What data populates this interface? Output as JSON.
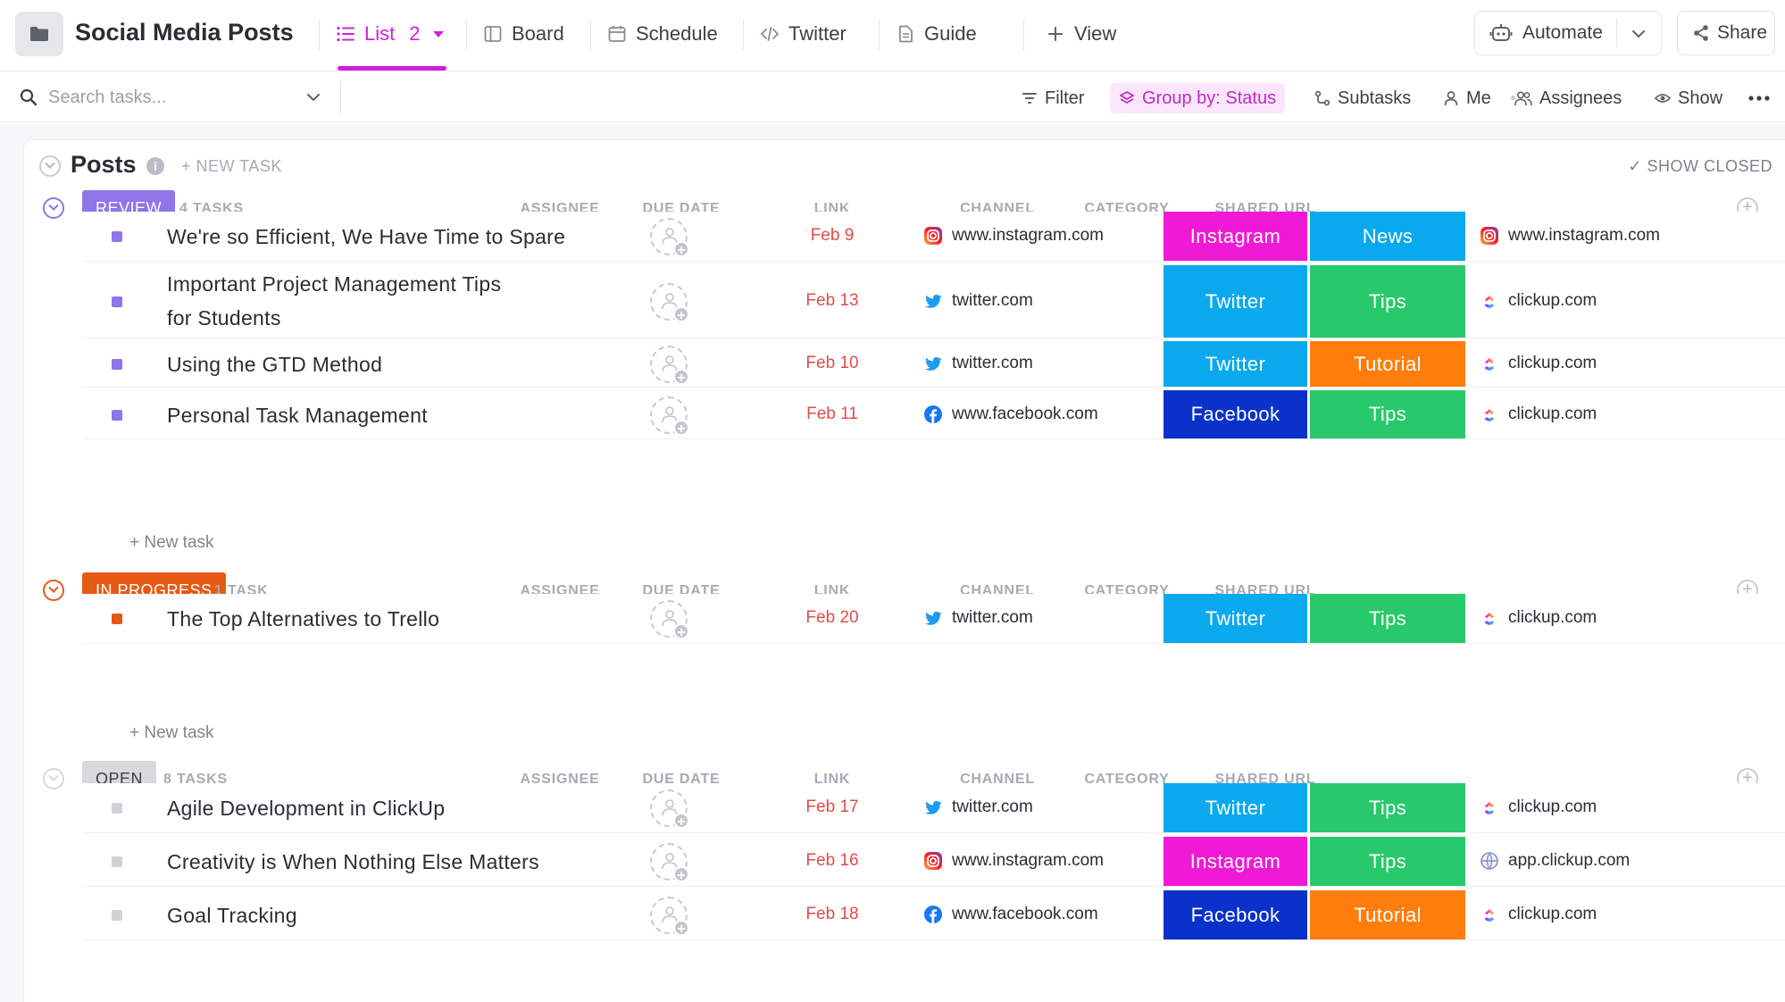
{
  "header": {
    "title": "Social Media Posts",
    "tabs": [
      {
        "label": "List",
        "count": "2",
        "icon": "list-icon",
        "active": true
      },
      {
        "label": "Board",
        "icon": "board-icon"
      },
      {
        "label": "Schedule",
        "icon": "calendar-icon"
      },
      {
        "label": "Twitter",
        "icon": "embed-icon"
      },
      {
        "label": "Guide",
        "icon": "doc-icon"
      }
    ],
    "add_view": "View",
    "automate": "Automate",
    "share": "Share"
  },
  "toolbar": {
    "search_placeholder": "Search tasks...",
    "filter": "Filter",
    "group_by": "Group by: Status",
    "subtasks": "Subtasks",
    "me": "Me",
    "assignees": "Assignees",
    "show": "Show"
  },
  "list": {
    "title": "Posts",
    "new_task": "+ NEW TASK",
    "show_closed": "SHOW CLOSED"
  },
  "columns": {
    "assignee": "ASSIGNEE",
    "due_date": "DUE DATE",
    "link": "LINK",
    "channel": "CHANNEL",
    "category": "CATEGORY",
    "shared_url": "SHARED URL"
  },
  "new_task_row": "+ New task",
  "colors": {
    "accent": "#d020d8",
    "review": "#8f74ea",
    "in_progress": "#e65a14",
    "open": "#d7d9dd",
    "due": "#e34b48",
    "Instagram": "#f01ad6",
    "Twitter": "#0aa9ee",
    "Facebook": "#0a31c9",
    "News": "#0aa9ee",
    "Tips": "#27c96b",
    "Tutorial": "#ff7d0c"
  },
  "groups": [
    {
      "status": "REVIEW",
      "count": "4 TASKS",
      "pill_bg": "#8f74ea",
      "pill_fg": "#ffffff",
      "square": "#8f74ea",
      "tasks": [
        {
          "name": "We're so Efficient, We Have Time to Spare",
          "due": "Feb 9",
          "link": "www.instagram.com",
          "link_icon": "instagram",
          "channel": "Instagram",
          "category": "News",
          "shared": "www.instagram.com",
          "shared_icon": "instagram"
        },
        {
          "name": "Important Project Management Tips for Students",
          "due": "Feb 13",
          "link": "twitter.com",
          "link_icon": "twitter",
          "channel": "Twitter",
          "category": "Tips",
          "shared": "clickup.com",
          "shared_icon": "clickup"
        },
        {
          "name": "Using the GTD Method",
          "due": "Feb 10",
          "link": "twitter.com",
          "link_icon": "twitter",
          "channel": "Twitter",
          "category": "Tutorial",
          "shared": "clickup.com",
          "shared_icon": "clickup"
        },
        {
          "name": "Personal Task Management",
          "due": "Feb 11",
          "link": "www.facebook.com",
          "link_icon": "facebook",
          "channel": "Facebook",
          "category": "Tips",
          "shared": "clickup.com",
          "shared_icon": "clickup"
        }
      ]
    },
    {
      "status": "IN PROGRESS",
      "count": "1 TASK",
      "pill_bg": "#e65a14",
      "pill_fg": "#ffffff",
      "square": "#e65a14",
      "tasks": [
        {
          "name": "The Top Alternatives to Trello",
          "due": "Feb 20",
          "link": "twitter.com",
          "link_icon": "twitter",
          "channel": "Twitter",
          "category": "Tips",
          "shared": "clickup.com",
          "shared_icon": "clickup"
        }
      ]
    },
    {
      "status": "OPEN",
      "count": "8 TASKS",
      "pill_bg": "#d7d9dd",
      "pill_fg": "#3b3f46",
      "square": "#d0d2d6",
      "tasks": [
        {
          "name": "Agile Development in ClickUp",
          "due": "Feb 17",
          "link": "twitter.com",
          "link_icon": "twitter",
          "channel": "Twitter",
          "category": "Tips",
          "shared": "clickup.com",
          "shared_icon": "clickup"
        },
        {
          "name": "Creativity is When Nothing Else Matters",
          "due": "Feb 16",
          "link": "www.instagram.com",
          "link_icon": "instagram",
          "channel": "Instagram",
          "category": "Tips",
          "shared": "app.clickup.com",
          "shared_icon": "globe"
        },
        {
          "name": "Goal Tracking",
          "due": "Feb 18",
          "link": "www.facebook.com",
          "link_icon": "facebook",
          "channel": "Facebook",
          "category": "Tutorial",
          "shared": "clickup.com",
          "shared_icon": "clickup"
        }
      ]
    }
  ]
}
